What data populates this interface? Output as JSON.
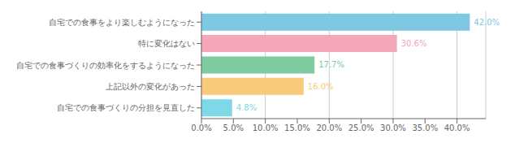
{
  "chart_data": {
    "type": "bar",
    "orientation": "horizontal",
    "categories": [
      "自宅での食事をより楽しむようになった",
      "特に変化はない",
      "自宅での食事づくりの効率化をするようになった",
      "上記以外の変化があった",
      "自宅での食事づくりの分担を見直した"
    ],
    "values": [
      42.0,
      30.6,
      17.7,
      16.0,
      4.8
    ],
    "value_labels": [
      "42.0%",
      "30.6%",
      "17.7%",
      "16.0%",
      "4.8%"
    ],
    "colors": [
      "#7ec8e3",
      "#f4a7b9",
      "#7ecba0",
      "#f9c97c",
      "#7dd8e8"
    ],
    "xlim": [
      0,
      44.5
    ],
    "xticks": [
      {
        "value": 0,
        "label": "0.0%"
      },
      {
        "value": 5.0,
        "label": "5.0%"
      },
      {
        "value": 10.0,
        "label": "10.0%"
      },
      {
        "value": 15.0,
        "label": "15.0%"
      },
      {
        "value": 20.0,
        "label": "20.0%"
      },
      {
        "value": 25.0,
        "label": "25.0%"
      },
      {
        "value": 30.0,
        "label": "30.0%"
      },
      {
        "value": 35.0,
        "label": "35.0%"
      },
      {
        "value": 40.0,
        "label": "40.0%"
      }
    ],
    "grid": true,
    "data_labels": true
  }
}
